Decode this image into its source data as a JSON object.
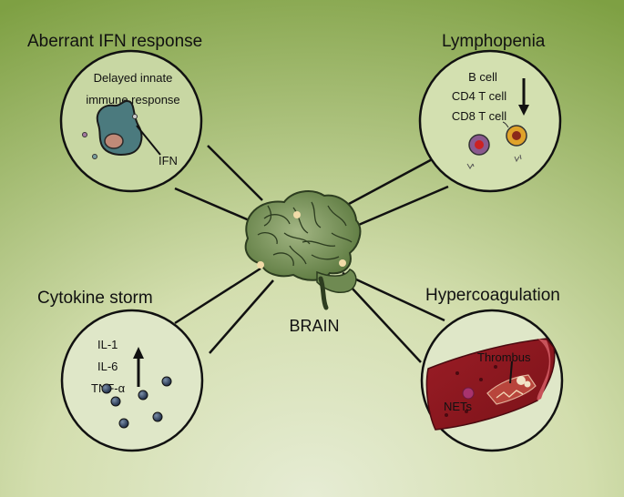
{
  "panels": {
    "aberrant_ifn": {
      "title": "Aberrant IFN response",
      "line1": "Delayed innate",
      "line2": "immune response",
      "label": "IFN"
    },
    "lymphopenia": {
      "title": "Lymphopenia",
      "items": [
        "B cell",
        "CD4 T cell",
        "CD8 T cell"
      ]
    },
    "cytokine_storm": {
      "title": "Cytokine storm",
      "items": [
        "IL-1",
        "IL-6",
        "TNF-α"
      ]
    },
    "hypercoagulation": {
      "title": "Hypercoagulation",
      "thrombus": "Thrombus",
      "nets": "NETs"
    }
  },
  "center": {
    "label": "BRAIN"
  },
  "colors": {
    "bg_light": "#dfe7c8",
    "bg_dark": "#7ea043",
    "brain_fill": "#7c9460",
    "vessel": "#8e1a20",
    "cell_blue": "#4f7e90"
  }
}
